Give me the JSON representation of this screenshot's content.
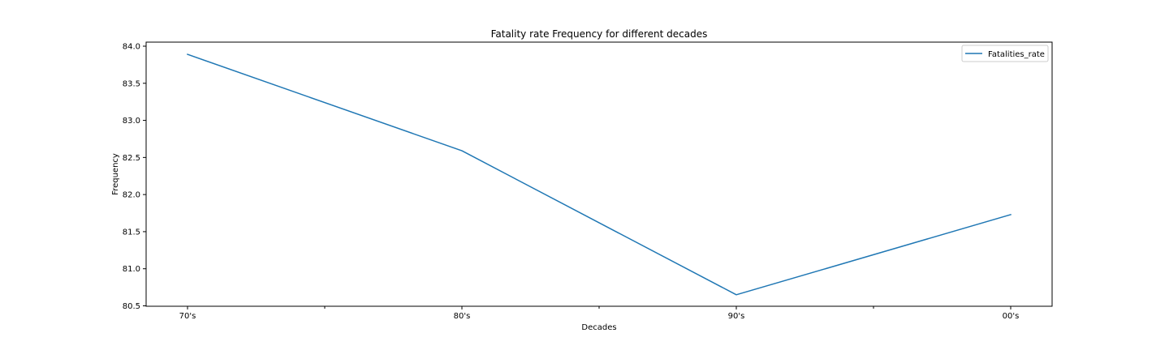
{
  "chart_data": {
    "type": "line",
    "title": "Fatality rate Frequency for different decades",
    "xlabel": "Decades",
    "ylabel": "Frequency",
    "categories": [
      "70's",
      "80's",
      "90's",
      "00's"
    ],
    "series": [
      {
        "name": "Fatalities_rate",
        "values": [
          83.89,
          82.59,
          80.65,
          81.73
        ],
        "color": "#1f77b4"
      }
    ],
    "ylim": [
      80.5,
      84.0
    ],
    "yticks": [
      "80.5",
      "81.0",
      "81.5",
      "82.0",
      "82.5",
      "83.0",
      "83.5",
      "84.0"
    ],
    "grid": false,
    "legend_position": "top-right"
  }
}
